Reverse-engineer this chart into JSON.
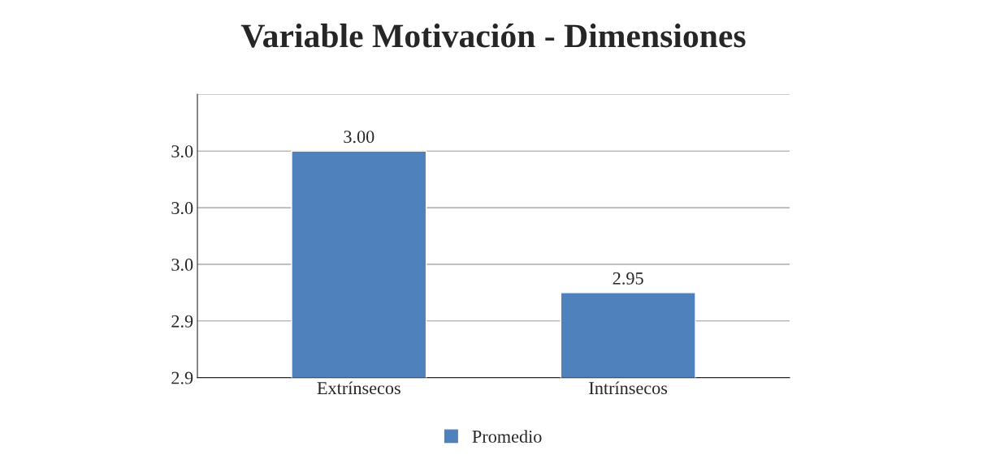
{
  "chart_data": {
    "type": "bar",
    "title": "Variable Motivación - Dimensiones",
    "categories": [
      "Extrínsecos",
      "Intrínsecos"
    ],
    "series": [
      {
        "name": "Promedio",
        "color": "#4f81bd",
        "values": [
          3.0,
          2.95
        ],
        "value_labels": [
          "3.00",
          "2.95"
        ]
      }
    ],
    "ylim": [
      2.92,
      3.02
    ],
    "yticks": [
      {
        "value": 2.92,
        "label": "2.9"
      },
      {
        "value": 2.94,
        "label": "2.9"
      },
      {
        "value": 2.96,
        "label": "3.0"
      },
      {
        "value": 2.98,
        "label": "3.0"
      },
      {
        "value": 3.0,
        "label": "3.0"
      },
      {
        "value": 3.02,
        "label": null
      }
    ],
    "grid": "y",
    "legend": "bottom"
  }
}
